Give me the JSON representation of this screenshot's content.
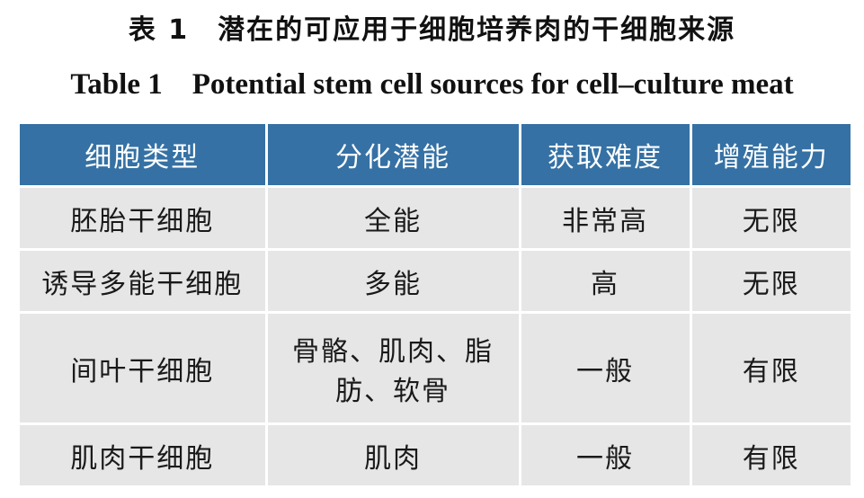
{
  "header": {
    "title_zh": "表 1　潜在的可应用于细胞培养肉的干细胞来源",
    "title_en": "Table 1　Potential stem cell sources for cell–culture meat"
  },
  "table": {
    "columns": [
      "细胞类型",
      "分化潜能",
      "获取难度",
      "增殖能力"
    ],
    "rows": [
      [
        "胚胎干细胞",
        "全能",
        "非常高",
        "无限"
      ],
      [
        "诱导多能干细胞",
        "多能",
        "高",
        "无限"
      ],
      [
        "间叶干细胞",
        "骨骼、肌肉、脂肪、软骨",
        "一般",
        "有限"
      ],
      [
        "肌肉干细胞",
        "肌肉",
        "一般",
        "有限"
      ]
    ]
  }
}
